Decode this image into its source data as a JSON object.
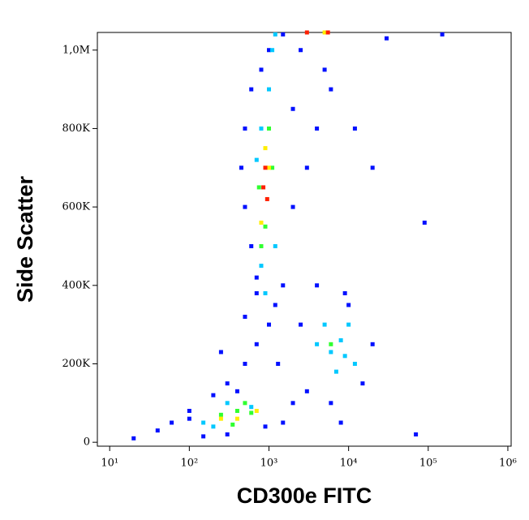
{
  "chart_data": {
    "type": "scatter",
    "x_label": "CD300e FITC",
    "y_label": "Side Scatter",
    "xscale": "log",
    "xlim": [
      7,
      1100000
    ],
    "xticks": [
      {
        "value": 10,
        "label": "10¹"
      },
      {
        "value": 100,
        "label": "10²"
      },
      {
        "value": 1000,
        "label": "10³"
      },
      {
        "value": 10000,
        "label": "10⁴"
      },
      {
        "value": 100000,
        "label": "10⁵"
      },
      {
        "value": 1000000,
        "label": "10⁶"
      }
    ],
    "ylim": [
      -10000,
      1045000
    ],
    "yticks": [
      0,
      {
        "value": 200000,
        "label": "200K"
      },
      {
        "value": 400000,
        "label": "400K"
      },
      {
        "value": 600000,
        "label": "600K"
      },
      {
        "value": 800000,
        "label": "800K"
      },
      {
        "value": 1000000,
        "label": "1,0M"
      }
    ],
    "series": [
      {
        "color": "#0010ff",
        "x": [
          1500,
          600,
          500,
          450,
          2000,
          500,
          600,
          700,
          2500,
          5000,
          6000,
          4000,
          3000,
          2000,
          1500,
          1200,
          1000,
          700,
          500,
          300,
          200,
          100,
          60,
          40,
          20,
          30000,
          20000,
          12000,
          10000,
          20000,
          15000,
          6000,
          3000,
          2500,
          4000,
          9000,
          1300,
          2000,
          1500,
          900,
          300,
          150,
          100,
          90000,
          70000,
          150000,
          8000,
          500,
          700,
          1000,
          800,
          400,
          250
        ],
        "values": [
          1040000,
          900000,
          800000,
          700000,
          850000,
          600000,
          500000,
          420000,
          1000000,
          950000,
          900000,
          800000,
          700000,
          600000,
          400000,
          350000,
          300000,
          250000,
          200000,
          150000,
          120000,
          80000,
          50000,
          30000,
          10000,
          1030000,
          700000,
          800000,
          350000,
          250000,
          150000,
          100000,
          130000,
          300000,
          400000,
          380000,
          200000,
          100000,
          50000,
          40000,
          20000,
          15000,
          60000,
          560000,
          20000,
          1040000,
          50000,
          320000,
          380000,
          1000000,
          950000,
          130000,
          230000
        ]
      },
      {
        "color": "#00c8ff",
        "x": [
          1100,
          1000,
          800,
          700,
          1200,
          800,
          900,
          5000,
          8000,
          6000,
          12000,
          4000,
          10000,
          7000,
          300,
          200,
          600,
          150,
          1200,
          9000
        ],
        "values": [
          1000000,
          900000,
          800000,
          720000,
          500000,
          450000,
          380000,
          300000,
          260000,
          230000,
          200000,
          250000,
          300000,
          180000,
          100000,
          40000,
          90000,
          50000,
          1040000,
          220000
        ]
      },
      {
        "color": "#30ff30",
        "x": [
          1000,
          750,
          900,
          800,
          1100,
          250,
          400,
          600,
          350,
          6000,
          500
        ],
        "values": [
          800000,
          650000,
          550000,
          500000,
          700000,
          70000,
          80000,
          75000,
          45000,
          250000,
          100000
        ]
      },
      {
        "color": "#ffee00",
        "x": [
          900,
          800,
          1000,
          250,
          400,
          700,
          5000
        ],
        "values": [
          750000,
          560000,
          700000,
          60000,
          60000,
          80000,
          1045000
        ]
      },
      {
        "color": "#ff2000",
        "x": [
          850,
          950,
          900,
          3000,
          5500
        ],
        "values": [
          650000,
          620000,
          700000,
          1045000,
          1045000
        ]
      }
    ]
  }
}
